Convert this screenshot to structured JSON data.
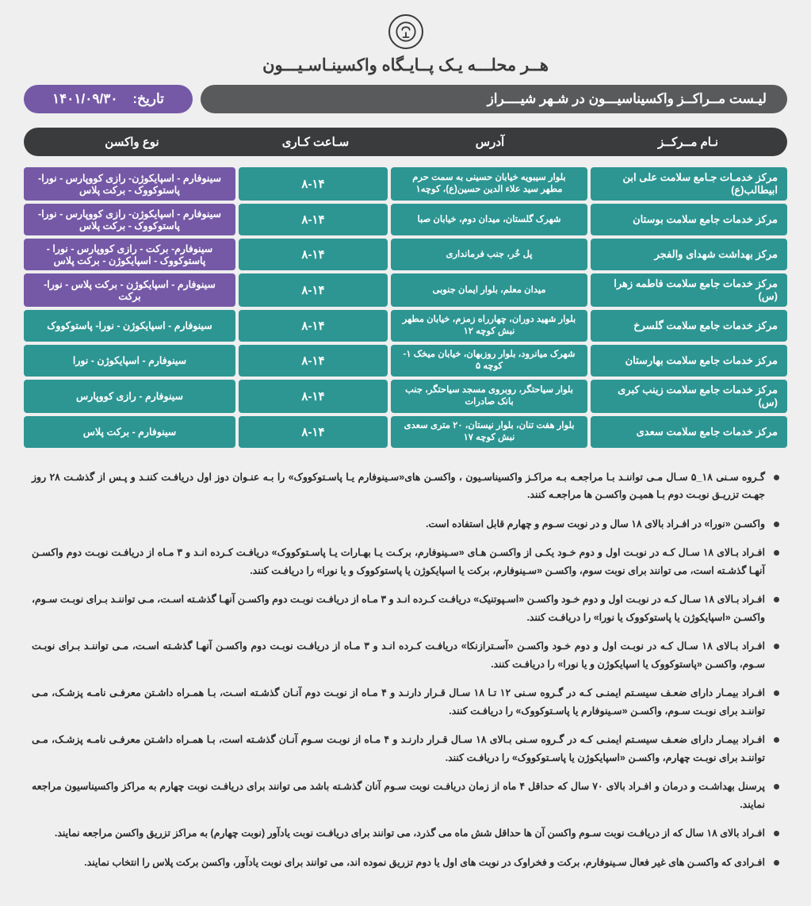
{
  "title": "هــر محلـــه یـک پــایـگاه واکسینـاسـیـــون",
  "subtitle": "لیـست مــراکــز واکسیناسیـــون در شـهر شیــــراز",
  "date_label": "تاریخ:",
  "date_value": "۱۴۰۱/۰۹/۳۰",
  "colors": {
    "teal": "#2d9693",
    "purple": "#7559a6",
    "header_dark": "#3a3b3d",
    "subbar_gray": "#595a5c",
    "page_bg": "#efefef"
  },
  "columns": [
    "نـام مــرکــز",
    "آدرس",
    "سـاعت کـاری",
    "نوع واکسن"
  ],
  "rows": [
    {
      "name": "مرکز خدمـات جـامع سلامت علی ابن ابیطالب(ع)",
      "addr": "بلوار سیبویه خیابان حسینی به سمت حرم\nمطهر سید علاء الدین حسین(ع)، کوچه۱",
      "hours": "۸-۱۴",
      "vac": "سینوفارم - اسپایکوژن- رازی کووپارس - نورا- پاستوکووک - برکت پلاس",
      "vac_bg": "purple"
    },
    {
      "name": "مرکز خدمات جامع سلامت بوستان",
      "addr": "شهرک گلستان،  میدان دوم، خیابان صبا",
      "hours": "۸-۱۴",
      "vac": "سینوفارم - اسپایکوژن- رازی کووپارس - نورا- پاستوکووک - برکت پلاس",
      "vac_bg": "purple"
    },
    {
      "name": "مرکز  بهداشت شهدای  والفجر",
      "addr": "پل خُر، جنب فرمانداری",
      "hours": "۸-۱۴",
      "vac": "سینوفارم- برکت - رازی کووپارس - نورا - پاستوکووک - اسپایکوژن - برکت پلاس",
      "vac_bg": "purple"
    },
    {
      "name": "مرکز خدمات جامع سلامت فاطمه زهرا (س)",
      "addr": "میدان معلم،  بلوار ایمان جنوبی",
      "hours": "۸-۱۴",
      "vac": "سینوفارم - اسپایکوژن -  برکت پلاس -  نورا-  برکت",
      "vac_bg": "purple"
    },
    {
      "name": "مرکز خدمات جامع سلامت گلسرخ",
      "addr": "بلوار شهید دوران، چهارراه زمزم، خیابان مطهر\nنبش کوچه ۱۲",
      "hours": "۸-۱۴",
      "vac": "سینوفارم - اسپایکوژن - نورا- پاستوکووک",
      "vac_bg": "teal"
    },
    {
      "name": "مرکز خدمات جامع سلامت بهارستان",
      "addr": "شهرک میانرود، بلوار روزبهان، خیابان میخک ۱- کوچه ۵",
      "hours": "۸-۱۴",
      "vac": "سینوفارم - اسپایکوژن -  نورا",
      "vac_bg": "teal"
    },
    {
      "name": "مرکز خدمات جامع سلامت زینب کبری (س)",
      "addr": "بلوار سیاحتگر، روبروی مسجد سیاحتگر، جنب بانک صادرات",
      "hours": "۸-۱۴",
      "vac": "سینوفارم -  رازی کووپارس",
      "vac_bg": "teal"
    },
    {
      "name": "مرکز خدمات جامع سلامت سعدی",
      "addr": "بلوار هفت تنان، بلوار نیستان، ۲۰ متری سعدی\nنبش کوچه ۱۷",
      "hours": "۸-۱۴",
      "vac": "سینوفارم -  برکت پلاس",
      "vac_bg": "teal"
    }
  ],
  "notes": [
    "گـروه سـنی ۱۸_۵ سـال مـی تواننـد  بـا مراجعـه بـه مراکـز واکسیناسـیون ،  واکسـن های«سـینوفارم یـا پاسـتوکووک»  را بـه عنـوان دوز اول دریافـت کننـد و پـس از گذشـت  ۲۸ روز جهـت تزریـق نوبـت دوم بـا همیـن واکسـن ها مراجعـه کنند.",
    "واکسـن «نورا»  در افـراد بالای ۱۸ سال و در نوبت سـوم و چهارم قابل استفاده است.",
    "افـراد بـالای ۱۸ سـال کـه در نوبـت اول و دوم خـود یکـی از واکسـن هـای  «سـینوفارم، برکـت یـا بهـارات یـا پاسـتوکووک» دریافـت کـرده انـد و ۳ مـاه از دریافـت نوبـت دوم واکسـن آنهـا گذشـته است، می توانند برای نوبت سوم، واکسـن «سـینوفارم، برکت یا اسپایکوژن یا  پاستوکووک و یا نورا» را دریافـت کنند.",
    "افـراد بـالای ۱۸ سـال کـه در نوبـت اول و دوم خـود واکسـن «اسـپوتنیک» دریافـت کـرده انـد و ۳ مـاه از دریافـت نوبـت دوم واکسـن آنهـا  گذشـته اسـت، مـی تواننـد بـرای نوبـت سـوم،  واکسـن «اسپایکوژن یا  پاستوکووک یا نورا» را دریافـت کنند.",
    "افـراد بـالای ۱۸ سـال کـه در نوبـت اول و دوم خـود واکسـن «آسـترازنکا» دریافـت کـرده انـد و ۳ مـاه از دریافـت نوبـت دوم واکسـن آنهـا  گذشـته اسـت، مـی تواننـد بـرای نوبـت سـوم، واکسـن «پاستوکووک یا اسپایکوژن و یا نورا» را دریافـت کنند.",
    "افـراد بیمـار دارای ضعـف سیسـتم ایمنـی کـه در گـروه سـنی ۱۲ تـا ۱۸ سـال قـرار دارنـد و ۴ مـاه از نوبـت دوم آنـان گذشـته اسـت، بـا همـراه داشـتن معرفـی نامـه پزشـک، مـی تواننـد برای نوبـت سـوم، واکسـن «سـینوفارم یا  پاسـتوکووک» را دریافـت کنند.",
    "افـراد بیمـار دارای ضعـف سیسـتم ایمنـی کـه در گـروه سـنی بـالای ۱۸ سـال قـرار دارنـد و ۴ مـاه از نوبـت سـوم آنـان گذشـته است، بـا همـراه داشـتن معرفـی نامـه پزشـک، مـی تواننـد برای نوبـت چهارم، واکسـن «اسپایکوژن یا  پاسـتوکووک» را دریافـت کنند.",
    "پرسنل بهداشـت و درمان و افـراد بالای ۷۰ سال که حداقل ۴ ماه از زمان دریافـت نوبت سـوم آنان گذشـته باشد می توانند برای دریافـت نوبت چهارم به مراکز واکسیناسیون مراجعه نمایند.",
    "افـراد بالای ۱۸ سال که از دریافـت نوبت سـوم واکسن آن ها حداقل شش ماه می گذرد، می توانند برای دریافـت نوبت یادآور  (نوبت چهارم) به مراکز تزریق واکسن مراجعه نمایند.",
    "افـرادی که واکسـن های غیر فعال  سـینوفارم، برکت و فخراوک در نوبت های اول یا دوم تزریق نموده اند، می توانند برای نوبت یادآور، واکسن برکت پلاس را انتخاب نمایند."
  ]
}
